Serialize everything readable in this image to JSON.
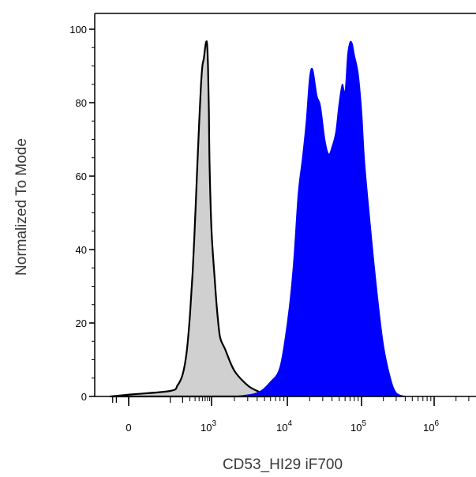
{
  "chart_data": {
    "type": "area",
    "title": "",
    "xlabel": "CD53_HI29 iF700",
    "ylabel": "Normalized To Mode",
    "x_scale": "biexponential",
    "ylim": [
      0,
      100
    ],
    "y_ticks": [
      {
        "value": 0,
        "label": "0"
      },
      {
        "value": 20,
        "label": "20"
      },
      {
        "value": 40,
        "label": "40"
      },
      {
        "value": 60,
        "label": "60"
      },
      {
        "value": 80,
        "label": "80"
      },
      {
        "value": 100,
        "label": "100"
      }
    ],
    "x_ticks": [
      {
        "value": 0,
        "label": "0",
        "exp": ""
      },
      {
        "value": 1000,
        "label": "10",
        "exp": "3"
      },
      {
        "value": 10000,
        "label": "10",
        "exp": "4"
      },
      {
        "value": 100000,
        "label": "10",
        "exp": "5"
      },
      {
        "value": 1000000,
        "label": "10",
        "exp": "6"
      }
    ],
    "grid": false,
    "legend": "none",
    "series": [
      {
        "role": "control",
        "fill": "#d0d0d0",
        "stroke": "#000000",
        "x": [
          -300,
          0,
          100,
          150,
          200,
          250,
          300,
          350,
          400,
          450,
          500,
          550,
          600,
          650,
          700,
          740,
          780,
          820,
          860,
          900,
          1000,
          1100,
          1200,
          1300,
          1500,
          2000,
          3000,
          4000,
          5000,
          6000
        ],
        "y": [
          0,
          0.5,
          1.5,
          3,
          6,
          12,
          22,
          34,
          48,
          62,
          74,
          84,
          90,
          92,
          95,
          96.5,
          96,
          90,
          78,
          62,
          45,
          32,
          22,
          16,
          13,
          7,
          3,
          1.5,
          0.5,
          0
        ]
      },
      {
        "role": "sample",
        "fill": "#0000ff",
        "stroke": "#0000ff",
        "x": [
          2000,
          4000,
          6000,
          8000,
          10000,
          12000,
          14000,
          16000,
          18000,
          20000,
          22000,
          25000,
          28000,
          32000,
          36000,
          40000,
          45000,
          50000,
          55000,
          60000,
          65000,
          70000,
          75000,
          80000,
          90000,
          100000,
          110000,
          130000,
          160000,
          200000,
          250000,
          300000,
          400000
        ],
        "y": [
          0,
          1,
          4,
          8,
          20,
          35,
          55,
          65,
          75,
          87,
          89,
          82,
          79,
          70,
          66,
          68,
          72,
          80,
          85,
          83,
          93,
          96.5,
          96,
          93,
          88,
          78,
          64,
          48,
          30,
          14,
          5,
          1,
          0
        ]
      }
    ]
  }
}
